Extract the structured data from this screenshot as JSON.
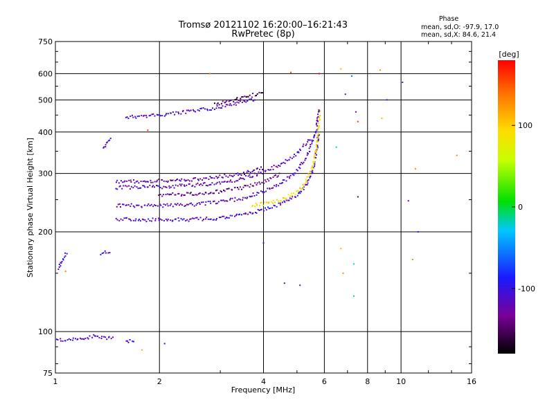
{
  "chart_data": {
    "type": "scatter",
    "title": "Tromsø 20121102 16:20:00–16:21:43",
    "subtitle": "RwPretec (8p)",
    "xlabel": "Frequency [MHz]",
    "ylabel": "Stationary phase Virtual Height [km]",
    "x_scale": "log",
    "y_scale": "log",
    "xlim": [
      1,
      16
    ],
    "ylim": [
      75,
      750
    ],
    "x_ticks": [
      1,
      2,
      4,
      6,
      8,
      10,
      16
    ],
    "x_tick_labels": [
      "1",
      "2",
      "4",
      "6",
      "8",
      "10",
      "16"
    ],
    "y_ticks": [
      75,
      100,
      200,
      300,
      400,
      500,
      600,
      750
    ],
    "y_tick_labels": [
      "75",
      "100",
      "200",
      "300",
      "400",
      "500",
      "600",
      "750"
    ],
    "grid": true,
    "stats": {
      "heading": "Phase",
      "line_o": "mean, sd,O: -97.9, 17.0",
      "line_x": "mean, sd,X:  84.6, 21.4"
    },
    "colorbar": {
      "unit": "[deg]",
      "range": [
        -180,
        180
      ],
      "ticks": [
        100,
        0,
        -100
      ],
      "tick_labels": [
        "100",
        "0",
        "-100"
      ],
      "colormap": "rainbow (black-purple-blue-cyan-green-yellow-orange-red)"
    },
    "traces": [
      {
        "type": "band",
        "x": [
          1.6,
          2.0,
          2.5,
          3.0,
          3.5,
          3.8
        ],
        "y": [
          443,
          450,
          462,
          476,
          492,
          505
        ],
        "phase": -110
      },
      {
        "type": "band",
        "x": [
          2.9,
          3.3,
          3.7,
          4.0
        ],
        "y": [
          485,
          500,
          515,
          530
        ],
        "phase": -150
      },
      {
        "type": "band",
        "x": [
          1.38,
          1.45
        ],
        "y": [
          355,
          385
        ],
        "phase": -110
      },
      {
        "type": "band",
        "x": [
          1.5,
          2.0,
          2.5,
          3.0,
          3.5,
          4.0,
          4.5,
          5.0,
          5.3,
          5.55,
          5.7,
          5.78
        ],
        "y": [
          218,
          217,
          218,
          220,
          225,
          233,
          243,
          257,
          275,
          305,
          350,
          400
        ],
        "phase": -110
      },
      {
        "type": "band",
        "x": [
          3.7,
          4.0,
          4.5,
          5.0,
          5.3,
          5.55,
          5.7,
          5.78,
          5.82
        ],
        "y": [
          240,
          243,
          250,
          263,
          282,
          315,
          360,
          410,
          470
        ],
        "phase": 90
      },
      {
        "type": "band",
        "x": [
          1.5,
          2.0,
          2.5,
          3.0,
          3.5,
          4.0,
          4.5,
          5.0,
          5.4,
          5.7,
          5.78
        ],
        "y": [
          240,
          240,
          242,
          246,
          253,
          264,
          280,
          305,
          345,
          410,
          470
        ],
        "phase": -115
      },
      {
        "type": "band",
        "x": [
          1.5,
          2.0,
          2.5,
          3.0,
          3.5,
          4.0,
          4.5,
          5.0,
          5.5
        ],
        "y": [
          272,
          273,
          276,
          281,
          290,
          303,
          320,
          345,
          385
        ],
        "phase": -120
      },
      {
        "type": "band",
        "x": [
          1.5,
          2.0,
          2.5,
          3.0,
          3.5,
          4.0
        ],
        "y": [
          283,
          285,
          288,
          293,
          300,
          312
        ],
        "phase": -125
      },
      {
        "type": "band",
        "x": [
          2.0,
          2.5,
          3.0,
          3.5,
          4.0,
          4.5
        ],
        "y": [
          258,
          260,
          265,
          272,
          283,
          300
        ],
        "phase": -140
      },
      {
        "type": "band",
        "x": [
          1.02,
          1.08
        ],
        "y": [
          155,
          175
        ],
        "phase": -110
      },
      {
        "type": "band",
        "x": [
          1.35,
          1.45
        ],
        "y": [
          172,
          175
        ],
        "phase": -110
      },
      {
        "type": "band",
        "x": [
          1.0,
          1.2,
          1.3,
          1.48
        ],
        "y": [
          94,
          95,
          97,
          95
        ],
        "phase": -110
      },
      {
        "type": "band",
        "x": [
          1.6,
          1.7
        ],
        "y": [
          93,
          94
        ],
        "phase": -110
      }
    ],
    "scattered_points": [
      {
        "x": 1.07,
        "y": 152,
        "phase": 130
      },
      {
        "x": 1.78,
        "y": 88,
        "phase": 110
      },
      {
        "x": 2.07,
        "y": 92,
        "phase": -90
      },
      {
        "x": 1.85,
        "y": 405,
        "phase": 160
      },
      {
        "x": 2.8,
        "y": 600,
        "phase": 140
      },
      {
        "x": 4.0,
        "y": 185,
        "phase": -120
      },
      {
        "x": 4.6,
        "y": 140,
        "phase": -120
      },
      {
        "x": 5.1,
        "y": 138,
        "phase": -100
      },
      {
        "x": 4.8,
        "y": 605,
        "phase": 160
      },
      {
        "x": 5.8,
        "y": 600,
        "phase": 180
      },
      {
        "x": 6.7,
        "y": 620,
        "phase": 110
      },
      {
        "x": 6.7,
        "y": 178,
        "phase": 110
      },
      {
        "x": 6.8,
        "y": 150,
        "phase": 130
      },
      {
        "x": 7.3,
        "y": 160,
        "phase": -20
      },
      {
        "x": 7.3,
        "y": 128,
        "phase": -10
      },
      {
        "x": 7.2,
        "y": 590,
        "phase": -60
      },
      {
        "x": 7.5,
        "y": 255,
        "phase": -150
      },
      {
        "x": 8.7,
        "y": 615,
        "phase": 130
      },
      {
        "x": 8.8,
        "y": 440,
        "phase": 110
      },
      {
        "x": 9.1,
        "y": 500,
        "phase": -100
      },
      {
        "x": 10.1,
        "y": 565,
        "phase": -120
      },
      {
        "x": 10.5,
        "y": 248,
        "phase": -120
      },
      {
        "x": 11.0,
        "y": 310,
        "phase": 130
      },
      {
        "x": 11.2,
        "y": 200,
        "phase": -100
      },
      {
        "x": 10.8,
        "y": 165,
        "phase": 130
      },
      {
        "x": 14.5,
        "y": 340,
        "phase": 130
      },
      {
        "x": 6.5,
        "y": 360,
        "phase": -20
      },
      {
        "x": 6.9,
        "y": 520,
        "phase": -110
      },
      {
        "x": 7.4,
        "y": 460,
        "phase": -120
      },
      {
        "x": 7.5,
        "y": 430,
        "phase": 160
      }
    ]
  }
}
